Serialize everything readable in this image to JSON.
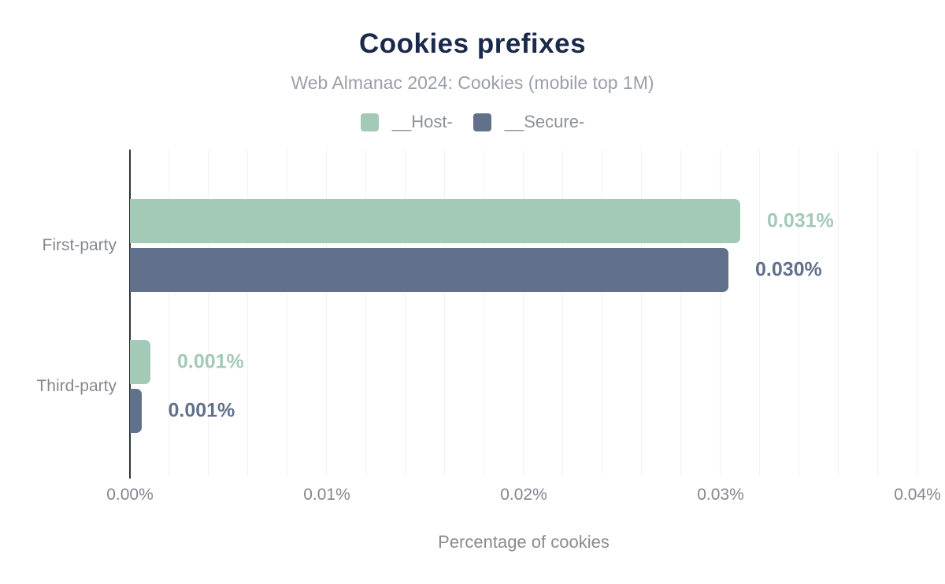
{
  "chart_data": {
    "type": "bar",
    "orientation": "horizontal",
    "title": "Cookies prefixes",
    "subtitle": "Web Almanac 2024: Cookies (mobile top 1M)",
    "xlabel": "Percentage of cookies",
    "categories": [
      "First-party",
      "Third-party"
    ],
    "series": [
      {
        "name": "__Host-",
        "color": "#a3c9b7",
        "values": [
          0.031,
          0.001
        ],
        "labels": [
          "0.031%",
          "0.001%"
        ],
        "render_values": [
          0.031,
          0.00104
        ]
      },
      {
        "name": "__Secure-",
        "color": "#61718c",
        "values": [
          0.03,
          0.001
        ],
        "labels": [
          "0.030%",
          "0.001%"
        ],
        "render_values": [
          0.0304,
          0.00058
        ]
      }
    ],
    "x_ticks": [
      {
        "label": "0.00%",
        "value": 0
      },
      {
        "label": "0.01%",
        "value": 0.01
      },
      {
        "label": "0.02%",
        "value": 0.02
      },
      {
        "label": "0.03%",
        "value": 0.03
      },
      {
        "label": "0.04%",
        "value": 0.04
      }
    ],
    "xlim": [
      0,
      0.04
    ],
    "grid_step": 0.002,
    "grid": true,
    "legend_position": "top",
    "value_labels_shown": true
  }
}
